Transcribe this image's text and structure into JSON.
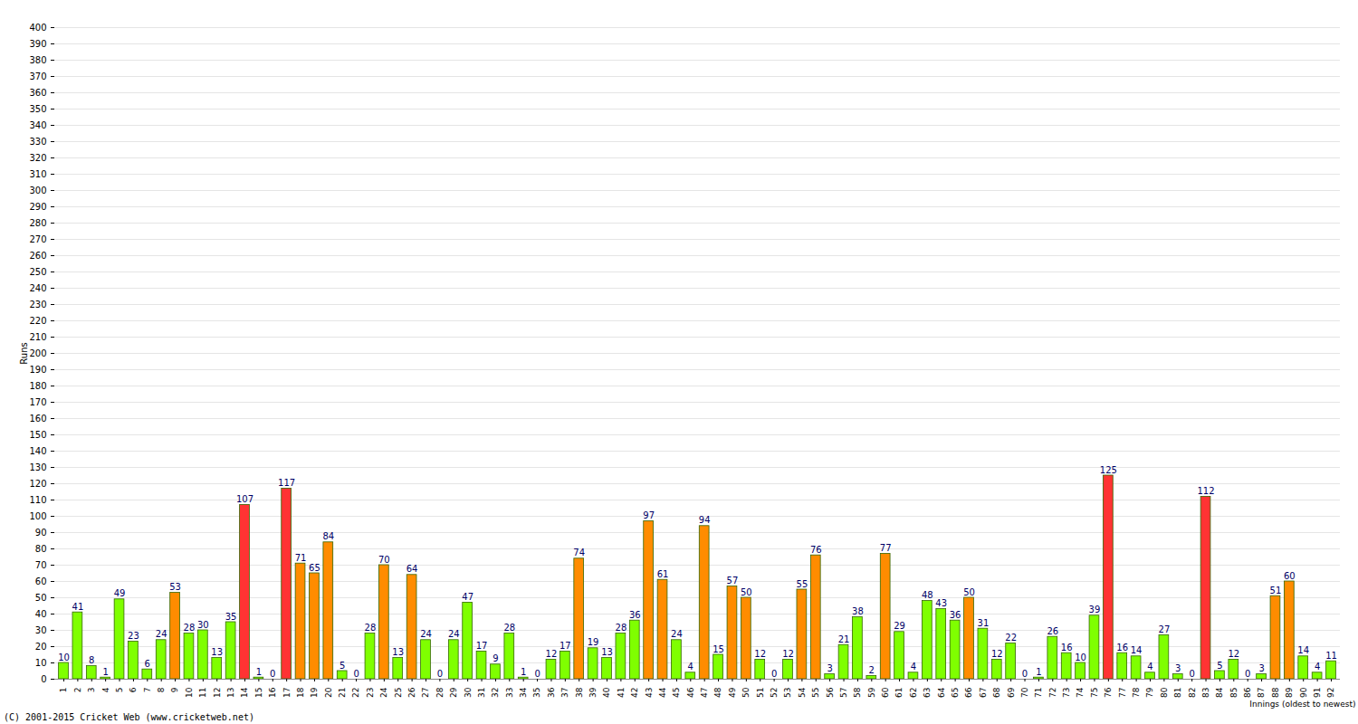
{
  "chart_data": {
    "type": "bar",
    "x_label": "Innings (oldest to newest)",
    "y_label": "Runs",
    "caption": "(C) 2001-2015 Cricket Web (www.cricketweb.net)",
    "categories": [
      "1",
      "2",
      "3",
      "4",
      "5",
      "6",
      "7",
      "8",
      "9",
      "10",
      "11",
      "12",
      "13",
      "14",
      "15",
      "16",
      "17",
      "18",
      "19",
      "20",
      "21",
      "22",
      "23",
      "24",
      "25",
      "26",
      "27",
      "28",
      "29",
      "30",
      "31",
      "32",
      "33",
      "34",
      "35",
      "36",
      "37",
      "38",
      "39",
      "40",
      "41",
      "42",
      "43",
      "44",
      "45",
      "46",
      "47",
      "48",
      "49",
      "50",
      "51",
      "52",
      "53",
      "54",
      "55",
      "56",
      "57",
      "58",
      "59",
      "60",
      "61",
      "62",
      "63",
      "64",
      "65",
      "66",
      "67",
      "68",
      "69",
      "70",
      "71",
      "72",
      "73",
      "74",
      "75",
      "76",
      "77",
      "78",
      "79",
      "80",
      "81",
      "82",
      "83",
      "84",
      "85",
      "86",
      "87",
      "88",
      "89",
      "90",
      "91",
      "92"
    ],
    "values": [
      10,
      41,
      8,
      1,
      49,
      23,
      6,
      24,
      53,
      28,
      30,
      13,
      35,
      107,
      1,
      0,
      117,
      71,
      65,
      84,
      5,
      0,
      28,
      70,
      13,
      64,
      24,
      0,
      24,
      47,
      17,
      9,
      28,
      1,
      0,
      12,
      17,
      74,
      19,
      13,
      28,
      36,
      97,
      61,
      24,
      4,
      94,
      15,
      57,
      50,
      12,
      0,
      12,
      55,
      76,
      3,
      21,
      38,
      2,
      77,
      29,
      4,
      48,
      43,
      36,
      50,
      31,
      12,
      22,
      0,
      1,
      26,
      16,
      10,
      39,
      125,
      16,
      14,
      4,
      27,
      3,
      0,
      112,
      5,
      12,
      0,
      3,
      51,
      60,
      14,
      4,
      11
    ],
    "colors": [
      "#7fff00",
      "#7fff00",
      "#7fff00",
      "#7fff00",
      "#7fff00",
      "#7fff00",
      "#7fff00",
      "#7fff00",
      "#ff8c00",
      "#7fff00",
      "#7fff00",
      "#7fff00",
      "#7fff00",
      "#ff3333",
      "#7fff00",
      "#7fff00",
      "#ff3333",
      "#ff8c00",
      "#ff8c00",
      "#ff8c00",
      "#7fff00",
      "#7fff00",
      "#7fff00",
      "#ff8c00",
      "#7fff00",
      "#ff8c00",
      "#7fff00",
      "#7fff00",
      "#7fff00",
      "#7fff00",
      "#7fff00",
      "#7fff00",
      "#7fff00",
      "#7fff00",
      "#7fff00",
      "#7fff00",
      "#7fff00",
      "#ff8c00",
      "#7fff00",
      "#7fff00",
      "#7fff00",
      "#7fff00",
      "#ff8c00",
      "#ff8c00",
      "#7fff00",
      "#7fff00",
      "#ff8c00",
      "#7fff00",
      "#ff8c00",
      "#ff8c00",
      "#7fff00",
      "#7fff00",
      "#7fff00",
      "#ff8c00",
      "#ff8c00",
      "#7fff00",
      "#7fff00",
      "#7fff00",
      "#7fff00",
      "#ff8c00",
      "#7fff00",
      "#7fff00",
      "#7fff00",
      "#7fff00",
      "#7fff00",
      "#ff8c00",
      "#7fff00",
      "#7fff00",
      "#7fff00",
      "#7fff00",
      "#7fff00",
      "#7fff00",
      "#7fff00",
      "#7fff00",
      "#7fff00",
      "#ff3333",
      "#7fff00",
      "#7fff00",
      "#7fff00",
      "#7fff00",
      "#7fff00",
      "#7fff00",
      "#ff3333",
      "#7fff00",
      "#7fff00",
      "#7fff00",
      "#7fff00",
      "#ff8c00",
      "#ff8c00",
      "#7fff00",
      "#7fff00",
      "#7fff00"
    ],
    "ylim": [
      0,
      400
    ],
    "yticks": [
      0,
      10,
      20,
      30,
      40,
      50,
      60,
      70,
      80,
      90,
      100,
      110,
      120,
      130,
      140,
      150,
      160,
      170,
      180,
      190,
      200,
      210,
      220,
      230,
      240,
      250,
      260,
      270,
      280,
      290,
      300,
      310,
      320,
      330,
      340,
      350,
      360,
      370,
      380,
      390,
      400
    ],
    "grid": true,
    "data_labels": true
  }
}
